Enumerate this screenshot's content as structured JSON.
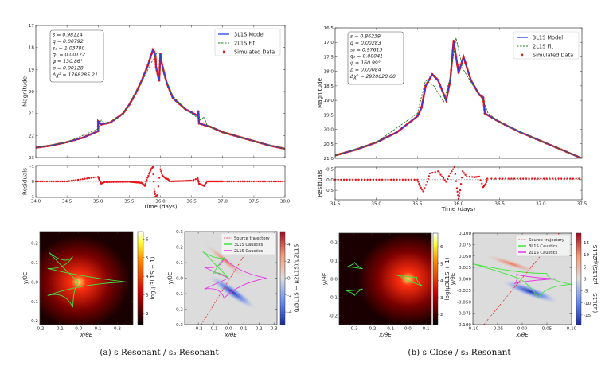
{
  "colors": {
    "model": "#2a3cf5",
    "fit": "#1e7a1e",
    "data": "#e8141a",
    "caustic3": "#3ee63e",
    "caustic2": "#e53be5",
    "traj": "#e83030"
  },
  "captions": {
    "a": "(a) s Resonant / s₃ Resonant",
    "b": "(b) s Close / s₃ Resonant"
  },
  "chart_data": [
    {
      "id": "a_lightcurve",
      "type": "line",
      "xlabel": "Time (days)",
      "ylabel": "Magnitude",
      "xlim": [
        34.0,
        38.0
      ],
      "ylim": [
        17,
        23
      ],
      "y_inverted": true,
      "xticks": [
        "34.0",
        "34.5",
        "35.0",
        "35.5",
        "36.0",
        "36.5",
        "37.0",
        "37.5",
        "38.0"
      ],
      "yticks": [
        "17",
        "18",
        "19",
        "20",
        "21",
        "22",
        "23"
      ],
      "legend": [
        "3L1S Model",
        "2L1S Fit",
        "Simulated Data"
      ],
      "legend_position": "top-right",
      "params": [
        "s = 0.98114",
        "q = 0.00792",
        "s₃ = 1.03780",
        "q₃ = 0.00172",
        "ψ = 130.86°",
        "ρ = 0.00128",
        "Δχ² = 1768285.21"
      ],
      "series": [
        {
          "name": "3L1S Model",
          "x": [
            34.0,
            34.25,
            34.5,
            34.75,
            35.0,
            35.0,
            35.05,
            35.2,
            35.4,
            35.5,
            35.6,
            35.7,
            35.8,
            35.88,
            35.9,
            35.92,
            35.93,
            35.98,
            36.0,
            36.02,
            36.1,
            36.2,
            36.4,
            36.6,
            36.61,
            36.62,
            36.8,
            37.0,
            37.25,
            37.5,
            37.75,
            38.0
          ],
          "y": [
            22.55,
            22.45,
            22.3,
            22.1,
            21.8,
            21.35,
            21.5,
            21.4,
            21.0,
            20.6,
            20.1,
            19.5,
            18.8,
            18.1,
            18.2,
            18.4,
            18.9,
            19.5,
            18.3,
            18.7,
            19.6,
            20.3,
            20.8,
            21.1,
            20.9,
            21.45,
            21.6,
            21.85,
            22.05,
            22.25,
            22.45,
            22.6
          ]
        },
        {
          "name": "2L1S Fit",
          "x": [
            34.0,
            34.5,
            35.0,
            35.05,
            35.1,
            35.2,
            35.4,
            35.5,
            35.6,
            35.75,
            35.85,
            35.9,
            35.95,
            36.0,
            36.05,
            36.2,
            36.4,
            36.6,
            36.65,
            36.7,
            36.75,
            37.0,
            37.5,
            38.0
          ],
          "y": [
            22.55,
            22.3,
            21.7,
            21.3,
            21.45,
            21.4,
            21.0,
            20.6,
            20.05,
            19.3,
            18.7,
            18.5,
            18.2,
            18.4,
            19.2,
            20.2,
            20.8,
            21.2,
            21.3,
            21.15,
            21.55,
            21.85,
            22.25,
            22.6
          ]
        }
      ]
    },
    {
      "id": "a_residuals",
      "type": "scatter",
      "xlabel": "Time (days)",
      "ylabel": "Residuals",
      "xlim": [
        34.0,
        38.0
      ],
      "ylim": [
        -1.05,
        1.05
      ],
      "y_inverted": true,
      "yticks": [
        "-1",
        "0",
        "1"
      ],
      "reference_line": 0,
      "x": [
        34.0,
        34.5,
        35.0,
        35.02,
        35.05,
        35.1,
        35.5,
        35.7,
        35.75,
        35.78,
        35.82,
        35.85,
        35.88,
        35.9,
        35.92,
        35.95,
        36.0,
        36.03,
        36.08,
        36.12,
        36.15,
        36.5,
        36.6,
        36.62,
        36.65,
        36.7,
        36.75,
        37.0,
        37.5,
        38.0
      ],
      "y": [
        0,
        0,
        -0.3,
        -0.1,
        0.15,
        0.05,
        0.02,
        0.1,
        0.3,
        -0.1,
        -0.5,
        -0.8,
        -0.95,
        0.5,
        1.0,
        0.9,
        -0.8,
        -0.4,
        -0.2,
        -0.15,
        0,
        -0.05,
        -0.2,
        0.15,
        0.2,
        0.3,
        0,
        0,
        0,
        0
      ]
    },
    {
      "id": "b_lightcurve",
      "type": "line",
      "xlabel": "Time (days)",
      "ylabel": "Magnitude",
      "xlim": [
        34.5,
        37.5
      ],
      "ylim": [
        16.5,
        21.0
      ],
      "y_inverted": true,
      "xticks": [
        "34.5",
        "35.0",
        "35.5",
        "36.0",
        "36.5",
        "37.0",
        "37.5"
      ],
      "yticks": [
        "16.5",
        "17.0",
        "17.5",
        "18.0",
        "18.5",
        "19.0",
        "19.5",
        "20.0",
        "20.5",
        "21.0"
      ],
      "legend": [
        "3L1S Model",
        "2L1S Fit",
        "Simulated Data"
      ],
      "legend_position": "top-right",
      "params": [
        "s = 0.86239",
        "q = 0.00283",
        "s₃ = 0.97613",
        "q₃ = 0.00041",
        "ψ = 160.99°",
        "ρ = 0.00084",
        "Δχ² = 2920628.60"
      ],
      "series": [
        {
          "name": "3L1S Model",
          "x": [
            34.5,
            34.75,
            35.0,
            35.25,
            35.5,
            35.55,
            35.6,
            35.68,
            35.75,
            35.85,
            35.9,
            35.94,
            36.0,
            36.06,
            36.15,
            36.25,
            36.3,
            36.32,
            36.5,
            36.75,
            37.0,
            37.25,
            37.5
          ],
          "y": [
            20.9,
            20.7,
            20.45,
            20.1,
            19.55,
            19.25,
            18.5,
            18.1,
            18.3,
            19.0,
            18.3,
            16.95,
            18.05,
            17.5,
            18.3,
            18.8,
            18.9,
            19.45,
            19.75,
            20.1,
            20.4,
            20.7,
            21.0
          ]
        },
        {
          "name": "2L1S Fit",
          "x": [
            34.5,
            35.0,
            35.5,
            35.6,
            35.7,
            35.82,
            35.9,
            35.97,
            36.05,
            36.2,
            36.3,
            36.36,
            36.5,
            37.0,
            37.5
          ],
          "y": [
            20.9,
            20.45,
            19.45,
            18.3,
            18.5,
            19.05,
            18.2,
            16.85,
            17.9,
            18.6,
            19.0,
            19.45,
            19.75,
            20.4,
            21.0
          ]
        }
      ]
    },
    {
      "id": "b_residuals",
      "type": "scatter",
      "xlabel": "Time (days)",
      "ylabel": "Residuals",
      "xlim": [
        34.5,
        37.5
      ],
      "ylim": [
        -0.6,
        0.95
      ],
      "y_inverted": true,
      "yticks": [
        "-0.5",
        "0.0",
        "0.5"
      ],
      "reference_line": 0,
      "x": [
        34.5,
        35.0,
        35.5,
        35.53,
        35.57,
        35.62,
        35.65,
        35.75,
        35.8,
        35.85,
        35.9,
        35.95,
        35.98,
        36.0,
        36.02,
        36.05,
        36.1,
        36.2,
        36.25,
        36.3,
        36.33,
        36.35,
        36.5,
        37.0,
        37.5
      ],
      "y": [
        0,
        0,
        0,
        0.3,
        0.55,
        0.1,
        -0.3,
        -0.4,
        -0.15,
        0.1,
        -0.3,
        -0.6,
        0.4,
        0.9,
        0.5,
        -0.4,
        -0.15,
        -0.12,
        -0.15,
        0.35,
        0.2,
        -0.05,
        -0.05,
        -0.05,
        -0.05
      ]
    },
    {
      "id": "a_mag_map",
      "type": "heatmap",
      "xlabel": "x/θE",
      "ylabel": "y/θE",
      "colorbar_label": "log(μ3L1S + 1)",
      "colormap": "hot",
      "xlim": [
        -0.2,
        0.28
      ],
      "ylim": [
        -0.22,
        0.26
      ],
      "clim": [
        1.4,
        6.4
      ],
      "xticks": [
        "-0.2",
        "-0.1",
        "0.0",
        "0.1",
        "0.2"
      ],
      "yticks": [
        "-0.2",
        "-0.1",
        "0.0",
        "0.1",
        "0.2"
      ],
      "cticks": [
        "2",
        "3",
        "4",
        "5",
        "6"
      ],
      "caustics3": [
        [
          [
            -0.15,
            0.15
          ],
          [
            -0.03,
            0.13
          ],
          [
            -0.16,
            0.07
          ],
          [
            0.245,
            0.0
          ],
          [
            -0.16,
            -0.07
          ],
          [
            -0.03,
            -0.13
          ],
          [
            0.0,
            0.0
          ]
        ]
      ]
    },
    {
      "id": "a_diff_map",
      "type": "heatmap",
      "xlabel": "x/θE",
      "ylabel": "y/θE",
      "colorbar_label": "(μ3L1S − μ2L1S)/μ2L1S",
      "colormap": "coolwarm",
      "xlim": [
        -0.29,
        0.32
      ],
      "ylim": [
        -0.3,
        0.3
      ],
      "clim": [
        -5.5,
        5.5
      ],
      "xticks": [
        "-0.2",
        "-0.1",
        "0.0",
        "0.1",
        "0.2",
        "0.3"
      ],
      "yticks": [
        "-0.3",
        "-0.2",
        "-0.1",
        "0.0",
        "0.1",
        "0.2",
        "0.3"
      ],
      "cticks": [
        "-4",
        "-2",
        "0",
        "2",
        "4"
      ],
      "legend": [
        "Source trajectory",
        "3L1S Caustics",
        "2L1S Caustics"
      ],
      "legend_position": "top-right",
      "trajectory": [
        [
          -0.18,
          -0.3
        ],
        [
          0.2,
          0.3
        ]
      ],
      "caustics3": [
        [
          [
            -0.17,
            0.17
          ],
          [
            -0.03,
            0.13
          ],
          [
            -0.1,
            0.03
          ],
          [
            0.0,
            0.0
          ],
          [
            -0.1,
            0.1
          ]
        ]
      ],
      "caustics2": [
        [
          [
            -0.16,
            0.07
          ],
          [
            -0.03,
            0.13
          ],
          [
            0.25,
            0.0
          ],
          [
            -0.03,
            -0.13
          ],
          [
            -0.16,
            -0.07
          ],
          [
            0.0,
            0.0
          ]
        ]
      ]
    },
    {
      "id": "b_mag_map",
      "type": "heatmap",
      "xlabel": "x/θE",
      "ylabel": "y/θE",
      "colorbar_label": "log(μ3L1S + 1)",
      "colormap": "hot",
      "xlim": [
        -0.38,
        0.13
      ],
      "ylim": [
        -0.25,
        0.25
      ],
      "clim": [
        1.4,
        6.8
      ],
      "xticks": [
        "-0.3",
        "-0.2",
        "-0.1",
        "0.0",
        "0.1"
      ],
      "yticks": [
        "-0.2",
        "-0.1",
        "0.0",
        "0.1",
        "0.2"
      ],
      "cticks": [
        "2",
        "3",
        "4",
        "5",
        "6"
      ],
      "caustics3": [
        [
          [
            -0.34,
            0.065
          ],
          [
            -0.295,
            0.09
          ],
          [
            -0.25,
            0.055
          ]
        ],
        [
          [
            -0.34,
            -0.065
          ],
          [
            -0.295,
            -0.09
          ],
          [
            -0.25,
            -0.055
          ]
        ],
        [
          [
            -0.07,
            0.025
          ],
          [
            0.05,
            0.01
          ],
          [
            0.08,
            -0.04
          ],
          [
            0.02,
            -0.02
          ],
          [
            -0.01,
            -0.005
          ]
        ]
      ]
    },
    {
      "id": "b_diff_map",
      "type": "heatmap",
      "xlabel": "x/θE",
      "ylabel": "y/θE",
      "colorbar_label": "(μ3L1S − μ2L1S)/μ2L1S",
      "colormap": "coolwarm",
      "xlim": [
        -0.1,
        0.1
      ],
      "ylim": [
        -0.1,
        0.1
      ],
      "clim": [
        -19,
        19
      ],
      "xticks": [
        "-0.10",
        "-0.05",
        "0.00",
        "0.05",
        "0.10"
      ],
      "yticks": [
        "-0.100",
        "-0.075",
        "-0.050",
        "-0.025",
        "0.000",
        "0.025",
        "0.050",
        "0.075",
        "0.100"
      ],
      "cticks": [
        "-15",
        "-10",
        "-5",
        "0",
        "5",
        "10",
        "15"
      ],
      "legend": [
        "Source trajectory",
        "3L1S Caustics",
        "2L1S Caustics"
      ],
      "legend_position": "top-right",
      "trajectory": [
        [
          -0.078,
          -0.1
        ],
        [
          0.075,
          0.1
        ]
      ],
      "caustics3": [
        [
          [
            -0.1,
            0.033
          ],
          [
            0.05,
            0.012
          ],
          [
            0.1,
            -0.012
          ],
          [
            0.033,
            -0.042
          ],
          [
            -0.005,
            0.0
          ]
        ]
      ],
      "caustics2": [
        [
          [
            -0.012,
            0.01
          ],
          [
            0.07,
            0.0
          ],
          [
            -0.015,
            -0.01
          ]
        ]
      ]
    }
  ]
}
